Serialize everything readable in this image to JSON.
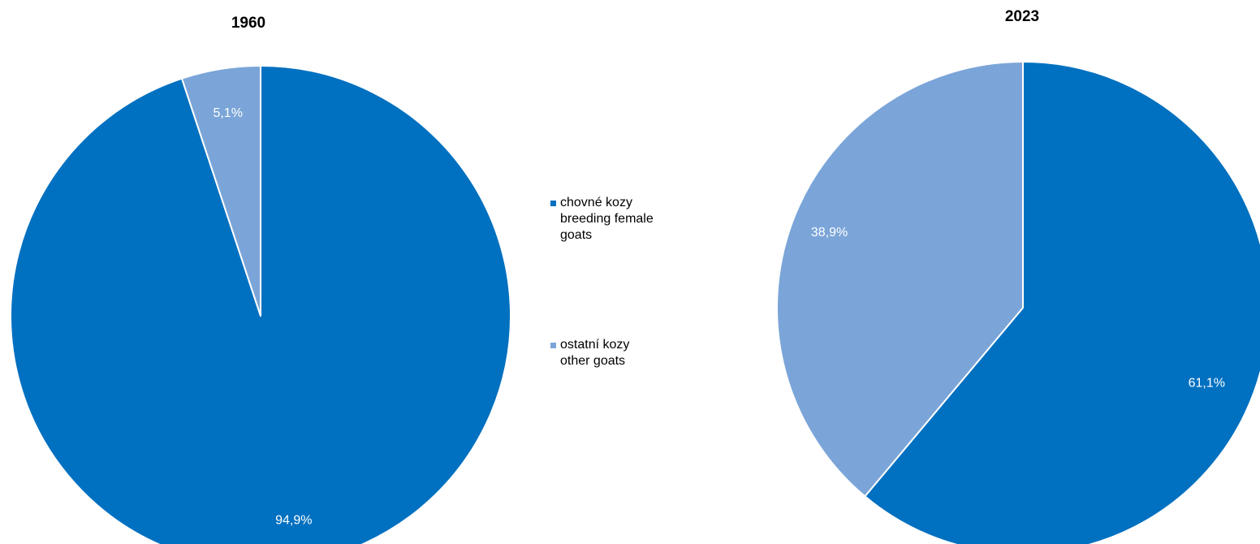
{
  "chart_data": [
    {
      "type": "pie",
      "title": "1960",
      "slices": [
        {
          "label": "chovné kozy breeding female goats",
          "value": 94.9,
          "display": "94,9%",
          "color": "#0070c0"
        },
        {
          "label": "ostatní kozy other goats",
          "value": 5.1,
          "display": "5,1%",
          "color": "#7ba5d8"
        }
      ],
      "start_angle": "12 o'clock",
      "direction": "clockwise"
    },
    {
      "type": "pie",
      "title": "2023",
      "slices": [
        {
          "label": "chovné kozy breeding female goats",
          "value": 61.1,
          "display": "61,1%",
          "color": "#0070c0"
        },
        {
          "label": "ostatní kozy other goats",
          "value": 38.9,
          "display": "38,9%",
          "color": "#7ba5d8"
        }
      ],
      "start_angle": "12 o'clock",
      "direction": "clockwise"
    }
  ],
  "legend": {
    "placement": "center",
    "items": [
      {
        "lines": [
          "chovné kozy",
          "breeding female",
          "goats"
        ],
        "color": "#0070c0"
      },
      {
        "lines": [
          "ostatní kozy",
          "other goats"
        ],
        "color": "#7ba5d8"
      }
    ]
  }
}
